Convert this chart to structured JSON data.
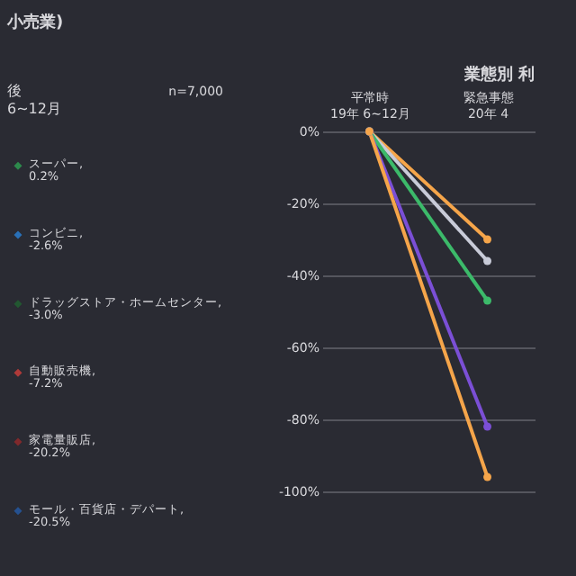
{
  "chart_data": [
    {
      "type": "other",
      "title": "小売業)",
      "annotations": [
        "後\n6~12月",
        "n=7,000"
      ],
      "series": [
        {
          "name": "スーパー,",
          "color": "#2fb457",
          "values": [
            0.2
          ],
          "value_labels": [
            "0.2%"
          ]
        },
        {
          "name": "コンビニ,",
          "color": "#2a8ff0",
          "values": [
            -2.6
          ],
          "value_labels": [
            "-2.6%"
          ]
        },
        {
          "name": "ドラッグストア・ホームセンター,",
          "color": "#1f6b30",
          "values": [
            -3.0
          ],
          "value_labels": [
            "-3.0%"
          ]
        },
        {
          "name": "自動販売機,",
          "color": "#e8413c",
          "values": [
            -7.2
          ],
          "value_labels": [
            "-7.2%"
          ]
        },
        {
          "name": "家電量販店,",
          "color": "#a52a2a",
          "values": [
            -20.2
          ],
          "value_labels": [
            "-20.2%"
          ]
        },
        {
          "name": "モール・百貨店・デパート,",
          "color": "#2462b8",
          "values": [
            -20.5
          ],
          "value_labels": [
            "-20.5%"
          ]
        }
      ]
    },
    {
      "type": "line",
      "title": "業態別 利",
      "categories": [
        "平常時\n19年 6~12月",
        "緊急事態\n20年 4"
      ],
      "ylim": [
        -100,
        0
      ],
      "yticks": [
        {
          "value": 0,
          "label": "0%"
        },
        {
          "value": -20,
          "label": "-20%"
        },
        {
          "value": -40,
          "label": "-40%"
        },
        {
          "value": -60,
          "label": "-60%"
        },
        {
          "value": -80,
          "label": "-80%"
        },
        {
          "value": -100,
          "label": "-100%"
        }
      ],
      "grid": "y",
      "marker": "circle",
      "series": [
        {
          "color": "#f5a54a",
          "values": [
            0,
            -30
          ]
        },
        {
          "color": "#c8cbd8",
          "values": [
            0,
            -36
          ]
        },
        {
          "color": "#3cba6a",
          "values": [
            0,
            -47
          ]
        },
        {
          "color": "#7b4fd6",
          "values": [
            0,
            -82
          ]
        },
        {
          "color": "#f5a54a",
          "values": [
            0,
            -96
          ]
        }
      ]
    }
  ]
}
